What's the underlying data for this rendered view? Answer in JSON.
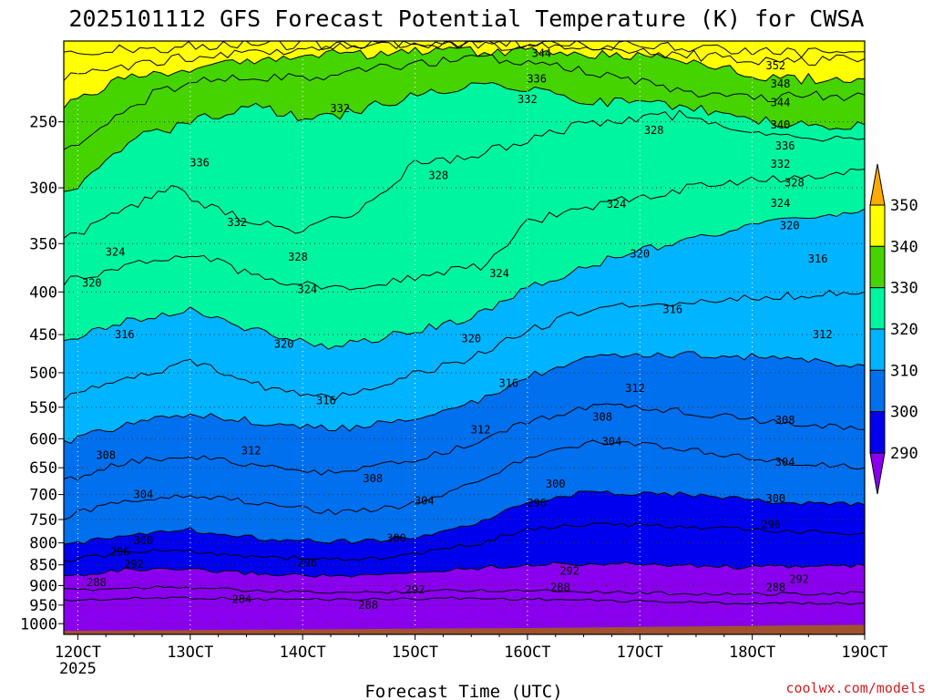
{
  "chart_data": {
    "type": "heatmap",
    "title": "2025101112 GFS Forecast Potential Temperature (K) for CWSA",
    "xlabel": "Forecast Time (UTC)",
    "ylabel": "",
    "credit": "coolwx.com/models",
    "x_ticks": [
      {
        "label": "12OCT",
        "sub": "2025",
        "hour": 0
      },
      {
        "label": "13OCT",
        "sub": "",
        "hour": 24
      },
      {
        "label": "14OCT",
        "sub": "",
        "hour": 48
      },
      {
        "label": "15OCT",
        "sub": "",
        "hour": 72
      },
      {
        "label": "16OCT",
        "sub": "",
        "hour": 96
      },
      {
        "label": "17OCT",
        "sub": "",
        "hour": 120
      },
      {
        "label": "18OCT",
        "sub": "",
        "hour": 144
      },
      {
        "label": "19OCT",
        "sub": "",
        "hour": 168
      }
    ],
    "xlim_hours": [
      -3,
      168
    ],
    "y_ticks": [
      250,
      300,
      350,
      400,
      450,
      500,
      550,
      600,
      650,
      700,
      750,
      800,
      850,
      900,
      950,
      1000
    ],
    "ylim_hpa": [
      200,
      1030
    ],
    "y_scale": "log",
    "colorbar": {
      "ticks": [
        "290",
        "300",
        "310",
        "320",
        "330",
        "340",
        "350"
      ],
      "levels": [
        280,
        290,
        300,
        310,
        320,
        330,
        340,
        350,
        360
      ],
      "colors": [
        "#8a00ee",
        "#0000ee",
        "#0070ee",
        "#00b4ff",
        "#00f5a0",
        "#46d400",
        "#ffff00",
        "#ffaa00"
      ]
    },
    "isotherms": [
      {
        "theta": 284,
        "points": [
          [
            -3,
            938
          ],
          [
            20,
            930
          ],
          [
            40,
            935
          ],
          [
            60,
            935
          ],
          [
            80,
            932
          ],
          [
            100,
            935
          ],
          [
            120,
            940
          ],
          [
            140,
            945
          ],
          [
            168,
            945
          ]
        ]
      },
      {
        "theta": 288,
        "points": [
          [
            -3,
            912
          ],
          [
            20,
            902
          ],
          [
            40,
            915
          ],
          [
            60,
            918
          ],
          [
            80,
            912
          ],
          [
            100,
            912
          ],
          [
            120,
            918
          ],
          [
            140,
            922
          ],
          [
            168,
            918
          ]
        ]
      },
      {
        "theta": 292,
        "points": [
          [
            -3,
            878
          ],
          [
            10,
            862
          ],
          [
            24,
            862
          ],
          [
            40,
            872
          ],
          [
            60,
            878
          ],
          [
            70,
            870
          ],
          [
            84,
            858
          ],
          [
            100,
            848
          ],
          [
            120,
            848
          ],
          [
            140,
            855
          ],
          [
            168,
            852
          ]
        ]
      },
      {
        "theta": 296,
        "points": [
          [
            -3,
            842
          ],
          [
            10,
            820
          ],
          [
            24,
            818
          ],
          [
            40,
            832
          ],
          [
            60,
            838
          ],
          [
            72,
            826
          ],
          [
            86,
            800
          ],
          [
            96,
            770
          ],
          [
            110,
            760
          ],
          [
            130,
            765
          ],
          [
            150,
            775
          ],
          [
            168,
            778
          ]
        ]
      },
      {
        "theta": 300,
        "points": [
          [
            -3,
            808
          ],
          [
            10,
            780
          ],
          [
            24,
            772
          ],
          [
            40,
            790
          ],
          [
            60,
            798
          ],
          [
            74,
            784
          ],
          [
            88,
            752
          ],
          [
            96,
            712
          ],
          [
            110,
            695
          ],
          [
            130,
            700
          ],
          [
            150,
            715
          ],
          [
            168,
            720
          ]
        ]
      },
      {
        "theta": 304,
        "points": [
          [
            -3,
            745
          ],
          [
            10,
            712
          ],
          [
            24,
            700
          ],
          [
            40,
            718
          ],
          [
            55,
            735
          ],
          [
            70,
            722
          ],
          [
            84,
            680
          ],
          [
            96,
            632
          ],
          [
            110,
            605
          ],
          [
            128,
            615
          ],
          [
            150,
            640
          ],
          [
            168,
            650
          ]
        ]
      },
      {
        "theta": 308,
        "points": [
          [
            -3,
            675
          ],
          [
            10,
            640
          ],
          [
            24,
            628
          ],
          [
            40,
            650
          ],
          [
            55,
            660
          ],
          [
            70,
            640
          ],
          [
            84,
            610
          ],
          [
            96,
            572
          ],
          [
            110,
            548
          ],
          [
            128,
            555
          ],
          [
            150,
            575
          ],
          [
            168,
            585
          ]
        ]
      },
      {
        "theta": 312,
        "points": [
          [
            -3,
            605
          ],
          [
            12,
            575
          ],
          [
            24,
            558
          ],
          [
            40,
            575
          ],
          [
            55,
            585
          ],
          [
            70,
            568
          ],
          [
            84,
            545
          ],
          [
            96,
            505
          ],
          [
            110,
            480
          ],
          [
            130,
            475
          ],
          [
            150,
            480
          ],
          [
            168,
            490
          ]
        ]
      },
      {
        "theta": 316,
        "points": [
          [
            -3,
            535
          ],
          [
            12,
            505
          ],
          [
            24,
            485
          ],
          [
            40,
            520
          ],
          [
            55,
            535
          ],
          [
            70,
            505
          ],
          [
            84,
            480
          ],
          [
            96,
            445
          ],
          [
            110,
            418
          ],
          [
            130,
            412
          ],
          [
            150,
            405
          ],
          [
            168,
            400
          ]
        ]
      },
      {
        "theta": 320,
        "points": [
          [
            -3,
            455
          ],
          [
            12,
            432
          ],
          [
            24,
            420
          ],
          [
            40,
            448
          ],
          [
            55,
            465
          ],
          [
            72,
            445
          ],
          [
            84,
            430
          ],
          [
            96,
            395
          ],
          [
            110,
            370
          ],
          [
            130,
            345
          ],
          [
            150,
            330
          ],
          [
            168,
            318
          ]
        ]
      },
      {
        "theta": 324,
        "points": [
          [
            -3,
            390
          ],
          [
            10,
            370
          ],
          [
            24,
            360
          ],
          [
            40,
            385
          ],
          [
            55,
            395
          ],
          [
            72,
            385
          ],
          [
            86,
            372
          ],
          [
            96,
            330
          ],
          [
            110,
            315
          ],
          [
            130,
            300
          ],
          [
            150,
            292
          ],
          [
            168,
            285
          ]
        ]
      },
      {
        "theta": 328,
        "points": [
          [
            -3,
            345
          ],
          [
            10,
            320
          ],
          [
            20,
            300
          ],
          [
            30,
            320
          ],
          [
            45,
            338
          ],
          [
            60,
            320
          ],
          [
            72,
            280
          ],
          [
            84,
            275
          ],
          [
            96,
            262
          ],
          [
            110,
            250
          ],
          [
            130,
            245
          ],
          [
            150,
            262
          ],
          [
            168,
            262
          ]
        ]
      },
      {
        "theta": 332,
        "points": [
          [
            -3,
            305
          ],
          [
            6,
            280
          ],
          [
            14,
            260
          ],
          [
            24,
            250
          ],
          [
            38,
            240
          ],
          [
            50,
            250
          ],
          [
            62,
            240
          ],
          [
            74,
            232
          ],
          [
            84,
            225
          ],
          [
            96,
            228
          ],
          [
            110,
            236
          ],
          [
            130,
            240
          ],
          [
            150,
            252
          ],
          [
            168,
            252
          ]
        ]
      },
      {
        "theta": 336,
        "points": [
          [
            -3,
            270
          ],
          [
            8,
            248
          ],
          [
            16,
            232
          ],
          [
            30,
            222
          ],
          [
            45,
            222
          ],
          [
            60,
            218
          ],
          [
            75,
            212
          ],
          [
            90,
            210
          ],
          [
            110,
            218
          ],
          [
            140,
            235
          ],
          [
            168,
            232
          ]
        ]
      },
      {
        "theta": 340,
        "points": [
          [
            -3,
            240
          ],
          [
            10,
            222
          ],
          [
            30,
            212
          ],
          [
            50,
            208
          ],
          [
            75,
            206
          ],
          [
            100,
            206
          ],
          [
            130,
            210
          ],
          [
            150,
            222
          ],
          [
            168,
            222
          ]
        ]
      },
      {
        "theta": 344,
        "points": [
          [
            -3,
            220
          ],
          [
            20,
            210
          ],
          [
            50,
            204
          ],
          [
            80,
            202
          ],
          [
            110,
            203
          ],
          [
            130,
            208
          ],
          [
            150,
            212
          ],
          [
            168,
            210
          ]
        ]
      },
      {
        "theta": 348,
        "points": [
          [
            -3,
            205
          ],
          [
            40,
            202
          ],
          [
            90,
            201
          ],
          [
            120,
            203
          ],
          [
            150,
            207
          ],
          [
            168,
            206
          ]
        ]
      }
    ],
    "contour_labels": [
      {
        "text": "344",
        "hour": 99,
        "hpa": 207
      },
      {
        "text": "336",
        "hour": 98,
        "hpa": 222
      },
      {
        "text": "332",
        "hour": 96,
        "hpa": 235
      },
      {
        "text": "352",
        "hour": 149,
        "hpa": 214
      },
      {
        "text": "348",
        "hour": 150,
        "hpa": 225
      },
      {
        "text": "344",
        "hour": 150,
        "hpa": 237
      },
      {
        "text": "340",
        "hour": 150,
        "hpa": 252
      },
      {
        "text": "336",
        "hour": 151,
        "hpa": 267
      },
      {
        "text": "332",
        "hour": 150,
        "hpa": 281
      },
      {
        "text": "328",
        "hour": 153,
        "hpa": 296
      },
      {
        "text": "324",
        "hour": 150,
        "hpa": 313
      },
      {
        "text": "320",
        "hour": 152,
        "hpa": 333
      },
      {
        "text": "316",
        "hour": 158,
        "hpa": 365
      },
      {
        "text": "332",
        "hour": 56,
        "hpa": 241
      },
      {
        "text": "336",
        "hour": 26,
        "hpa": 280
      },
      {
        "text": "328",
        "hour": 77,
        "hpa": 290
      },
      {
        "text": "332",
        "hour": 34,
        "hpa": 330
      },
      {
        "text": "324",
        "hour": 8,
        "hpa": 358
      },
      {
        "text": "328",
        "hour": 47,
        "hpa": 363
      },
      {
        "text": "324",
        "hour": 49,
        "hpa": 397
      },
      {
        "text": "320",
        "hour": 3,
        "hpa": 390
      },
      {
        "text": "324",
        "hour": 90,
        "hpa": 380
      },
      {
        "text": "324",
        "hour": 115,
        "hpa": 314
      },
      {
        "text": "328",
        "hour": 123,
        "hpa": 256
      },
      {
        "text": "320",
        "hour": 120,
        "hpa": 360
      },
      {
        "text": "316",
        "hour": 10,
        "hpa": 450
      },
      {
        "text": "320",
        "hour": 44,
        "hpa": 462
      },
      {
        "text": "320",
        "hour": 84,
        "hpa": 455
      },
      {
        "text": "316",
        "hour": 127,
        "hpa": 420
      },
      {
        "text": "312",
        "hour": 159,
        "hpa": 450
      },
      {
        "text": "316",
        "hour": 53,
        "hpa": 540
      },
      {
        "text": "316",
        "hour": 92,
        "hpa": 515
      },
      {
        "text": "312",
        "hour": 119,
        "hpa": 522
      },
      {
        "text": "312",
        "hour": 86,
        "hpa": 585
      },
      {
        "text": "312",
        "hour": 37,
        "hpa": 620
      },
      {
        "text": "308",
        "hour": 112,
        "hpa": 565
      },
      {
        "text": "308",
        "hour": 6,
        "hpa": 628
      },
      {
        "text": "304",
        "hour": 114,
        "hpa": 605
      },
      {
        "text": "308",
        "hour": 151,
        "hpa": 570
      },
      {
        "text": "304",
        "hour": 151,
        "hpa": 640
      },
      {
        "text": "308",
        "hour": 63,
        "hpa": 670
      },
      {
        "text": "304",
        "hour": 74,
        "hpa": 712
      },
      {
        "text": "304",
        "hour": 14,
        "hpa": 700
      },
      {
        "text": "300",
        "hour": 102,
        "hpa": 680
      },
      {
        "text": "300",
        "hour": 68,
        "hpa": 790
      },
      {
        "text": "300",
        "hour": 14,
        "hpa": 795
      },
      {
        "text": "300",
        "hour": 149,
        "hpa": 708
      },
      {
        "text": "296",
        "hour": 98,
        "hpa": 717
      },
      {
        "text": "296",
        "hour": 148,
        "hpa": 760
      },
      {
        "text": "296",
        "hour": 49,
        "hpa": 845
      },
      {
        "text": "296",
        "hour": 9,
        "hpa": 820
      },
      {
        "text": "292",
        "hour": 12,
        "hpa": 848
      },
      {
        "text": "292",
        "hour": 72,
        "hpa": 910
      },
      {
        "text": "292",
        "hour": 105,
        "hpa": 865
      },
      {
        "text": "292",
        "hour": 154,
        "hpa": 885
      },
      {
        "text": "288",
        "hour": 149,
        "hpa": 905
      },
      {
        "text": "288",
        "hour": 4,
        "hpa": 892
      },
      {
        "text": "288",
        "hour": 103,
        "hpa": 905
      },
      {
        "text": "288",
        "hour": 62,
        "hpa": 950
      },
      {
        "text": "284",
        "hour": 35,
        "hpa": 935
      }
    ]
  }
}
